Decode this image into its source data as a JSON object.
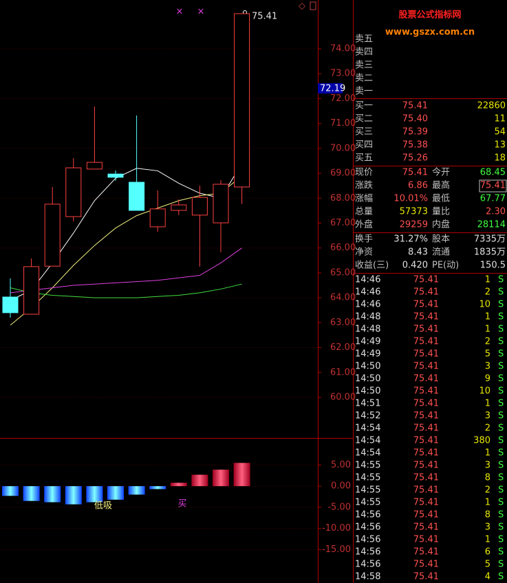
{
  "price_chart": {
    "ylim": [
      58.37,
      75.96
    ],
    "yticks": [
      {
        "value": 74,
        "label": "74.00"
      },
      {
        "value": 73,
        "label": "73.00"
      },
      {
        "value": 72,
        "label": "72.00"
      },
      {
        "value": 71,
        "label": "71.00"
      },
      {
        "value": 70,
        "label": "70.00"
      },
      {
        "value": 69,
        "label": "69.00"
      },
      {
        "value": 68,
        "label": "68.00"
      },
      {
        "value": 67,
        "label": "67.00"
      },
      {
        "value": 66,
        "label": "66.00"
      },
      {
        "value": 65,
        "label": "65.00"
      },
      {
        "value": 64,
        "label": "64.00"
      },
      {
        "value": 63,
        "label": "63.00"
      },
      {
        "value": 62,
        "label": "62.00"
      },
      {
        "value": 61,
        "label": "61.00"
      },
      {
        "value": 60,
        "label": "60.00"
      }
    ],
    "cursor_price": "72.19",
    "last_label": "75.41",
    "candles": [
      {
        "open": 64.03,
        "high": 64.78,
        "low": 63.2,
        "close": 63.4
      },
      {
        "open": 63.34,
        "high": 65.58,
        "low": 63.34,
        "close": 65.25
      },
      {
        "open": 65.27,
        "high": 68.45,
        "low": 65.27,
        "close": 67.76
      },
      {
        "open": 67.26,
        "high": 69.61,
        "low": 67.07,
        "close": 69.22
      },
      {
        "open": 69.17,
        "high": 71.68,
        "low": 69.17,
        "close": 69.44
      },
      {
        "open": 68.97,
        "high": 69.11,
        "low": 68.7,
        "close": 68.84
      },
      {
        "open": 68.64,
        "high": 71.32,
        "low": 67.51,
        "close": 67.51
      },
      {
        "open": 66.85,
        "high": 68.31,
        "low": 66.65,
        "close": 67.57
      },
      {
        "open": 67.51,
        "high": 67.95,
        "low": 67.32,
        "close": 67.73
      },
      {
        "open": 67.32,
        "high": 68.5,
        "low": 65.25,
        "close": 68.03
      },
      {
        "open": 67.01,
        "high": 68.73,
        "low": 65.83,
        "close": 68.56
      },
      {
        "open": 68.45,
        "high": 75.41,
        "low": 67.77,
        "close": 75.41
      }
    ],
    "ma_lines": [
      {
        "color": "#ffffff",
        "values": [
          63.9,
          64.3,
          65.4,
          66.6,
          67.9,
          68.8,
          69.2,
          69.1,
          68.6,
          68.2,
          68.0,
          69.4
        ]
      },
      {
        "color": "#f0f080",
        "values": [
          62.9,
          63.6,
          64.4,
          65.3,
          66.1,
          66.8,
          67.3,
          67.6,
          67.9,
          68.1,
          68.2,
          68.9
        ]
      },
      {
        "color": "#e040e0",
        "values": [
          64.2,
          64.3,
          64.4,
          64.5,
          64.55,
          64.6,
          64.65,
          64.7,
          64.8,
          64.9,
          65.4,
          66.0
        ]
      },
      {
        "color": "#40e040",
        "values": [
          64.4,
          64.2,
          64.1,
          64.05,
          64.0,
          64.0,
          64.0,
          64.05,
          64.1,
          64.2,
          64.35,
          64.55
        ]
      }
    ]
  },
  "indicator": {
    "ylim": [
      -22.9,
      11.4
    ],
    "yticks": [
      {
        "value": 5,
        "label": "5.00"
      },
      {
        "value": 0,
        "label": "0.00"
      },
      {
        "value": -5,
        "label": "-5.00"
      },
      {
        "value": -10,
        "label": "-10.00"
      },
      {
        "value": -15,
        "label": "-15.00"
      }
    ],
    "values": [
      -2.3,
      -3.5,
      -3.8,
      -4.3,
      -3.8,
      -3.2,
      -2.0,
      -0.7,
      0.8,
      2.7,
      3.9,
      5.5
    ],
    "signals": [
      "低吸",
      "买"
    ]
  },
  "watermark": {
    "title": "股票公式指标网",
    "url": "www.gszx.com.cn"
  },
  "order_book": {
    "sell": [
      "卖五",
      "卖四",
      "卖三",
      "卖二",
      "卖一"
    ],
    "buy": [
      [
        "买一",
        "75.41",
        "22860"
      ],
      [
        "买二",
        "75.40",
        "11"
      ],
      [
        "买三",
        "75.39",
        "54"
      ],
      [
        "买四",
        "75.38",
        "13"
      ],
      [
        "买五",
        "75.26",
        "18"
      ]
    ]
  },
  "quote": [
    [
      "现价",
      "75.41",
      "今开",
      "68.45"
    ],
    [
      "涨跌",
      "6.86",
      "最高",
      "75.41"
    ],
    [
      "涨幅",
      "10.01%",
      "最低",
      "67.77"
    ],
    [
      "总量",
      "57373",
      "量比",
      "2.30"
    ],
    [
      "外盘",
      "29259",
      "内盘",
      "28114"
    ]
  ],
  "fundamentals": [
    [
      "换手",
      "31.27%",
      "股本",
      "7335万"
    ],
    [
      "净资",
      "8.43",
      "流通",
      "1835万"
    ],
    [
      "收益(三)",
      "0.420",
      "PE(动)",
      "150.5"
    ]
  ],
  "ticks": [
    [
      "14:46",
      "75.41",
      "1",
      "S"
    ],
    [
      "14:46",
      "75.41",
      "2",
      "S"
    ],
    [
      "14:46",
      "75.41",
      "10",
      "S"
    ],
    [
      "14:48",
      "75.41",
      "1",
      "S"
    ],
    [
      "14:48",
      "75.41",
      "1",
      "S"
    ],
    [
      "14:49",
      "75.41",
      "2",
      "S"
    ],
    [
      "14:49",
      "75.41",
      "5",
      "S"
    ],
    [
      "14:50",
      "75.41",
      "3",
      "S"
    ],
    [
      "14:50",
      "75.41",
      "9",
      "S"
    ],
    [
      "14:50",
      "75.41",
      "10",
      "S"
    ],
    [
      "14:51",
      "75.41",
      "1",
      "S"
    ],
    [
      "14:52",
      "75.41",
      "3",
      "S"
    ],
    [
      "14:54",
      "75.41",
      "2",
      "S"
    ],
    [
      "14:54",
      "75.41",
      "380",
      "S"
    ],
    [
      "14:54",
      "75.41",
      "1",
      "S"
    ],
    [
      "14:55",
      "75.41",
      "3",
      "S"
    ],
    [
      "14:55",
      "75.41",
      "8",
      "S"
    ],
    [
      "14:55",
      "75.41",
      "2",
      "S"
    ],
    [
      "14:55",
      "75.41",
      "1",
      "S"
    ],
    [
      "14:56",
      "75.41",
      "8",
      "S"
    ],
    [
      "14:56",
      "75.41",
      "3",
      "S"
    ],
    [
      "14:56",
      "75.41",
      "1",
      "S"
    ],
    [
      "14:56",
      "75.41",
      "6",
      "S"
    ],
    [
      "14:56",
      "75.41",
      "5",
      "S"
    ],
    [
      "14:58",
      "75.41",
      "4",
      "S"
    ]
  ]
}
